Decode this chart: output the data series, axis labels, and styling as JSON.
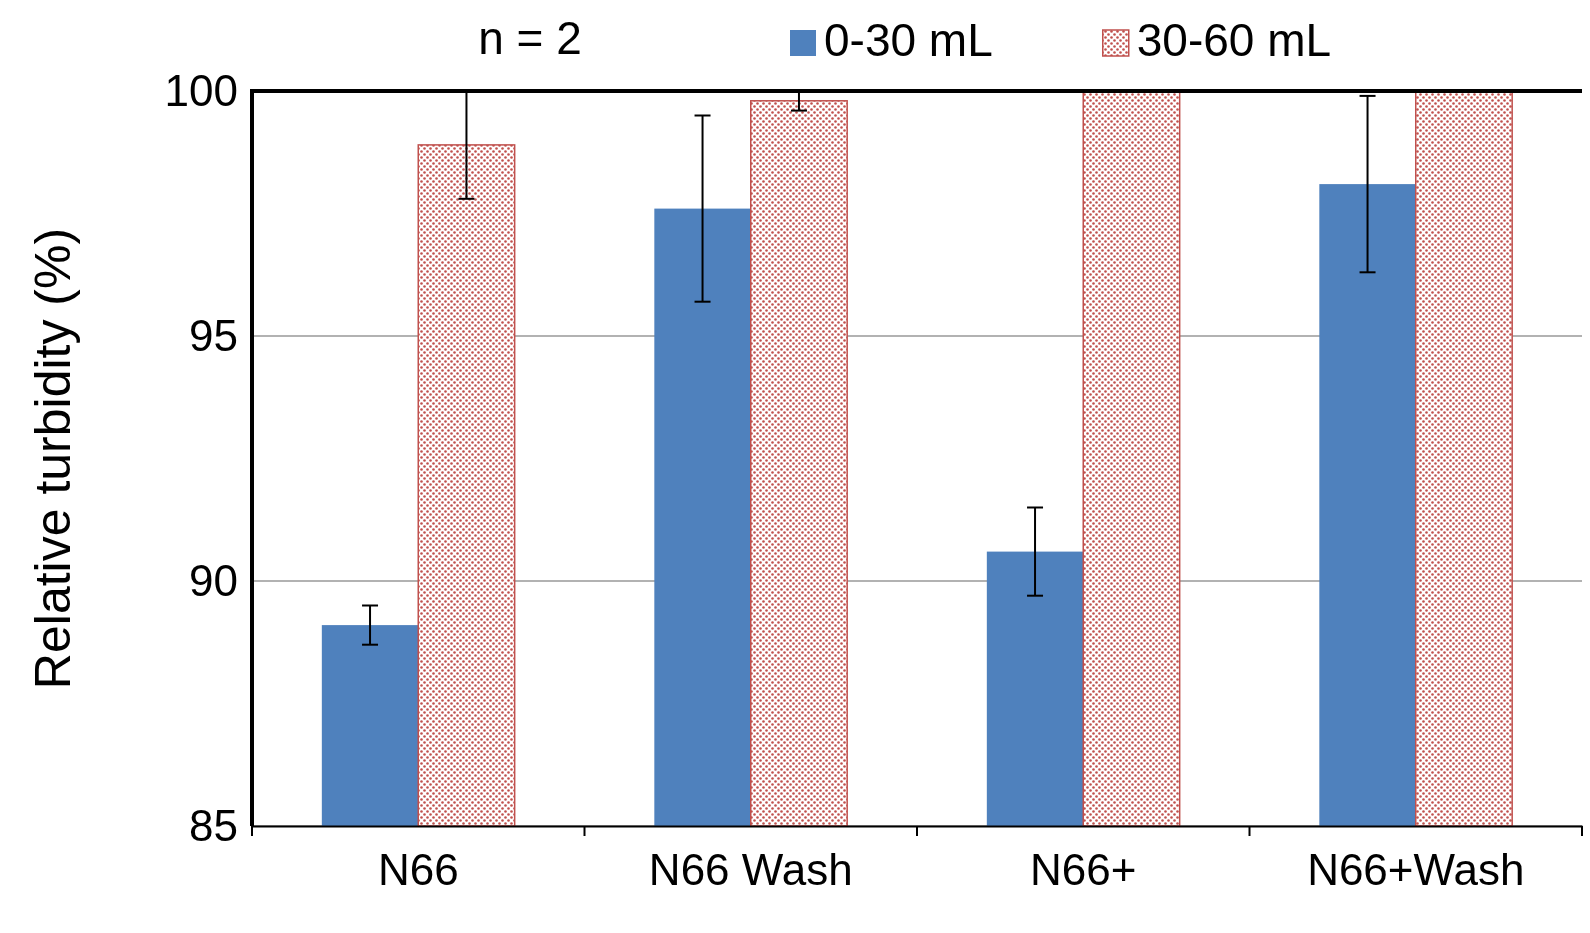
{
  "chart_data": {
    "type": "bar",
    "ylabel": "Relative turbidity (%)",
    "categories": [
      "N66",
      "N66 Wash",
      "N66+",
      "N66+Wash"
    ],
    "series": [
      {
        "name": "0-30 mL",
        "color": "#4f81bd",
        "values": [
          89.1,
          97.6,
          90.6,
          98.1
        ],
        "errors": [
          0.4,
          1.9,
          0.9,
          1.8
        ]
      },
      {
        "name": "30-60 mL",
        "color": "#c0504d",
        "values": [
          98.9,
          99.8,
          100,
          100
        ],
        "errors": [
          1.1,
          0.2,
          null,
          null
        ]
      }
    ],
    "ylim": [
      85,
      100
    ],
    "yticks": [
      85,
      90,
      95,
      100
    ],
    "grid": "y",
    "legend": "top",
    "annotations": [
      "n = 2"
    ]
  }
}
